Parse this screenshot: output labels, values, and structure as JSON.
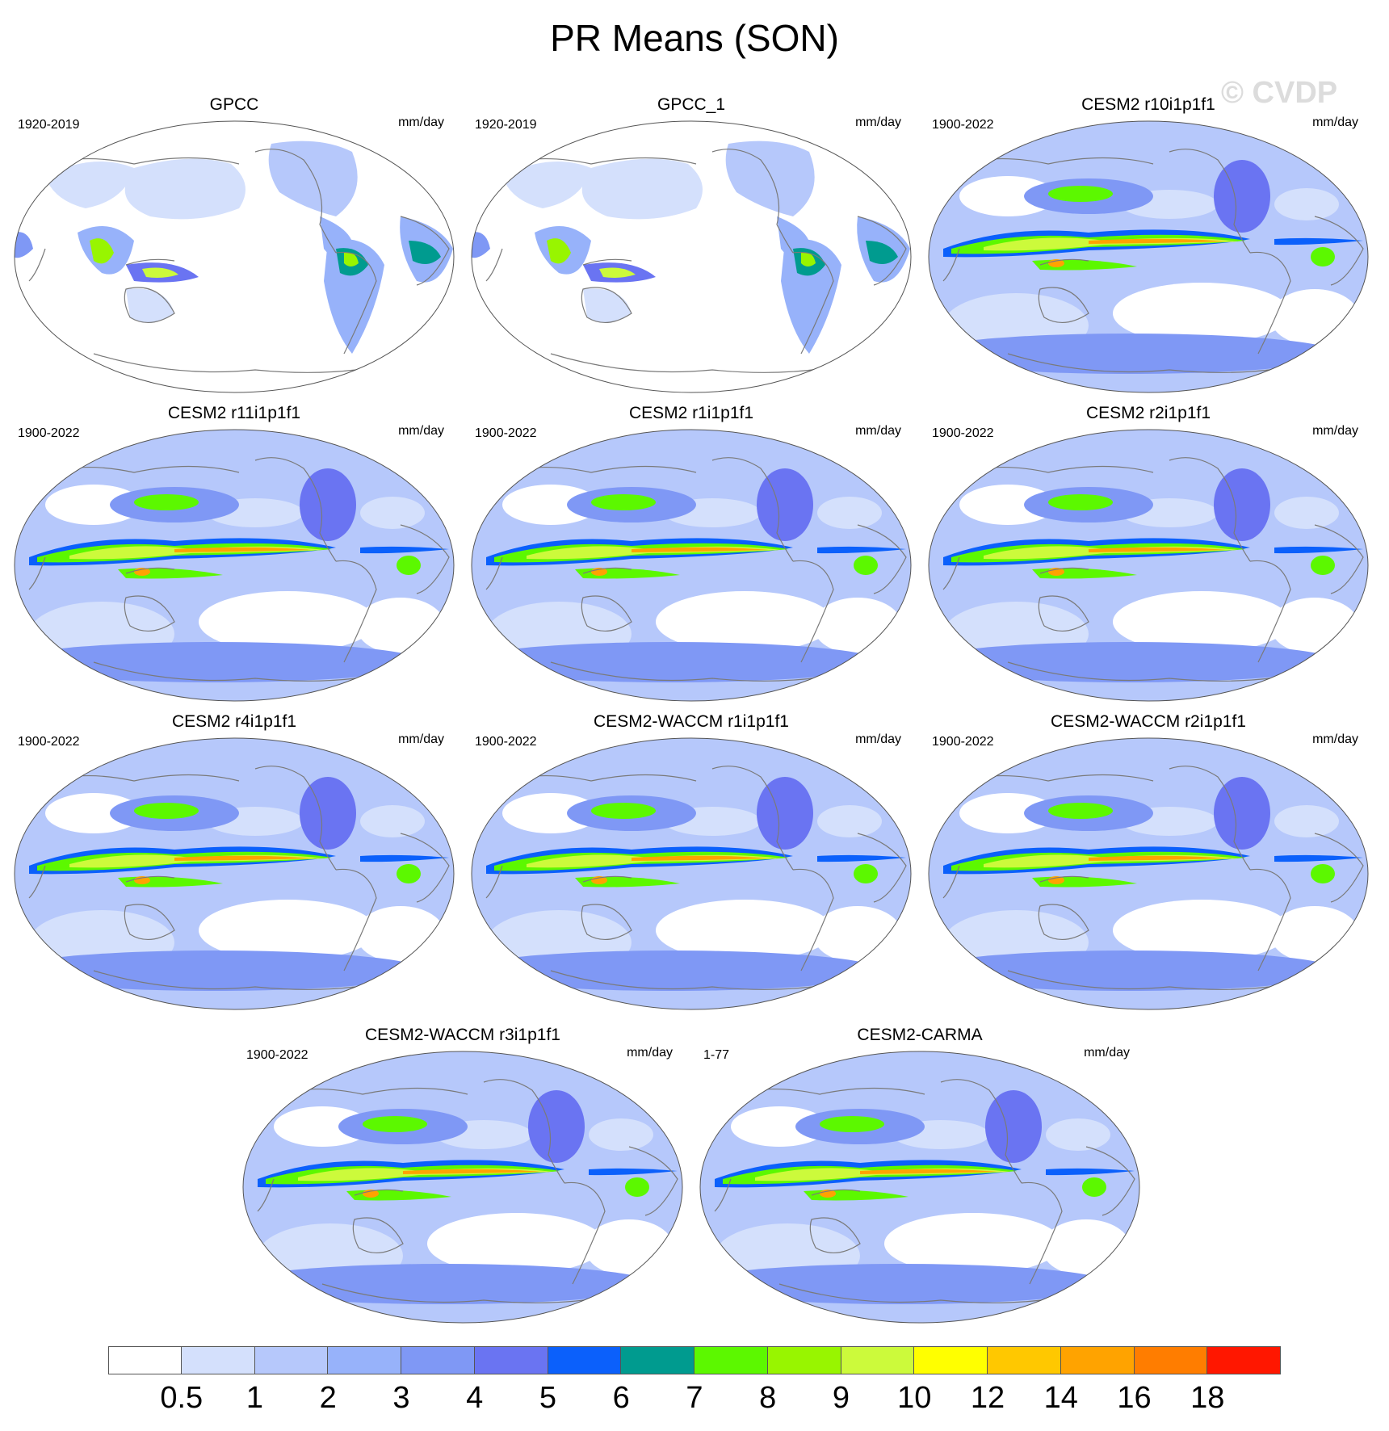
{
  "title": "PR Means (SON)",
  "watermark": "© CVDP",
  "units": "mm/day",
  "maps": [
    {
      "title": "GPCC",
      "period": "1920-2019",
      "style": "obs"
    },
    {
      "title": "GPCC_1",
      "period": "1920-2019",
      "style": "obs"
    },
    {
      "title": "CESM2 r10i1p1f1",
      "period": "1900-2022",
      "style": "model"
    },
    {
      "title": "CESM2 r11i1p1f1",
      "period": "1900-2022",
      "style": "model"
    },
    {
      "title": "CESM2 r1i1p1f1",
      "period": "1900-2022",
      "style": "model"
    },
    {
      "title": "CESM2 r2i1p1f1",
      "period": "1900-2022",
      "style": "model"
    },
    {
      "title": "CESM2 r4i1p1f1",
      "period": "1900-2022",
      "style": "model"
    },
    {
      "title": "CESM2-WACCM r1i1p1f1",
      "period": "1900-2022",
      "style": "model"
    },
    {
      "title": "CESM2-WACCM r2i1p1f1",
      "period": "1900-2022",
      "style": "model"
    },
    {
      "title": "CESM2-WACCM r3i1p1f1",
      "period": "1900-2022",
      "style": "model"
    },
    {
      "title": "CESM2-CARMA",
      "period": "1-77",
      "style": "model"
    }
  ],
  "colorbar": {
    "colors": [
      "#ffffff",
      "#d4e0fc",
      "#b6c8fb",
      "#97b2fa",
      "#7f98f5",
      "#6a74f2",
      "#0b60fb",
      "#009b8f",
      "#5cf800",
      "#98f500",
      "#ccfa3b",
      "#ffff00",
      "#ffc800",
      "#ffa300",
      "#ff7d00",
      "#ff1700"
    ],
    "labels": [
      "0.5",
      "1",
      "2",
      "3",
      "4",
      "5",
      "6",
      "7",
      "8",
      "9",
      "10",
      "12",
      "14",
      "16",
      "18"
    ]
  },
  "legend_icons": [
    "ocean-fill",
    "land-outline"
  ]
}
